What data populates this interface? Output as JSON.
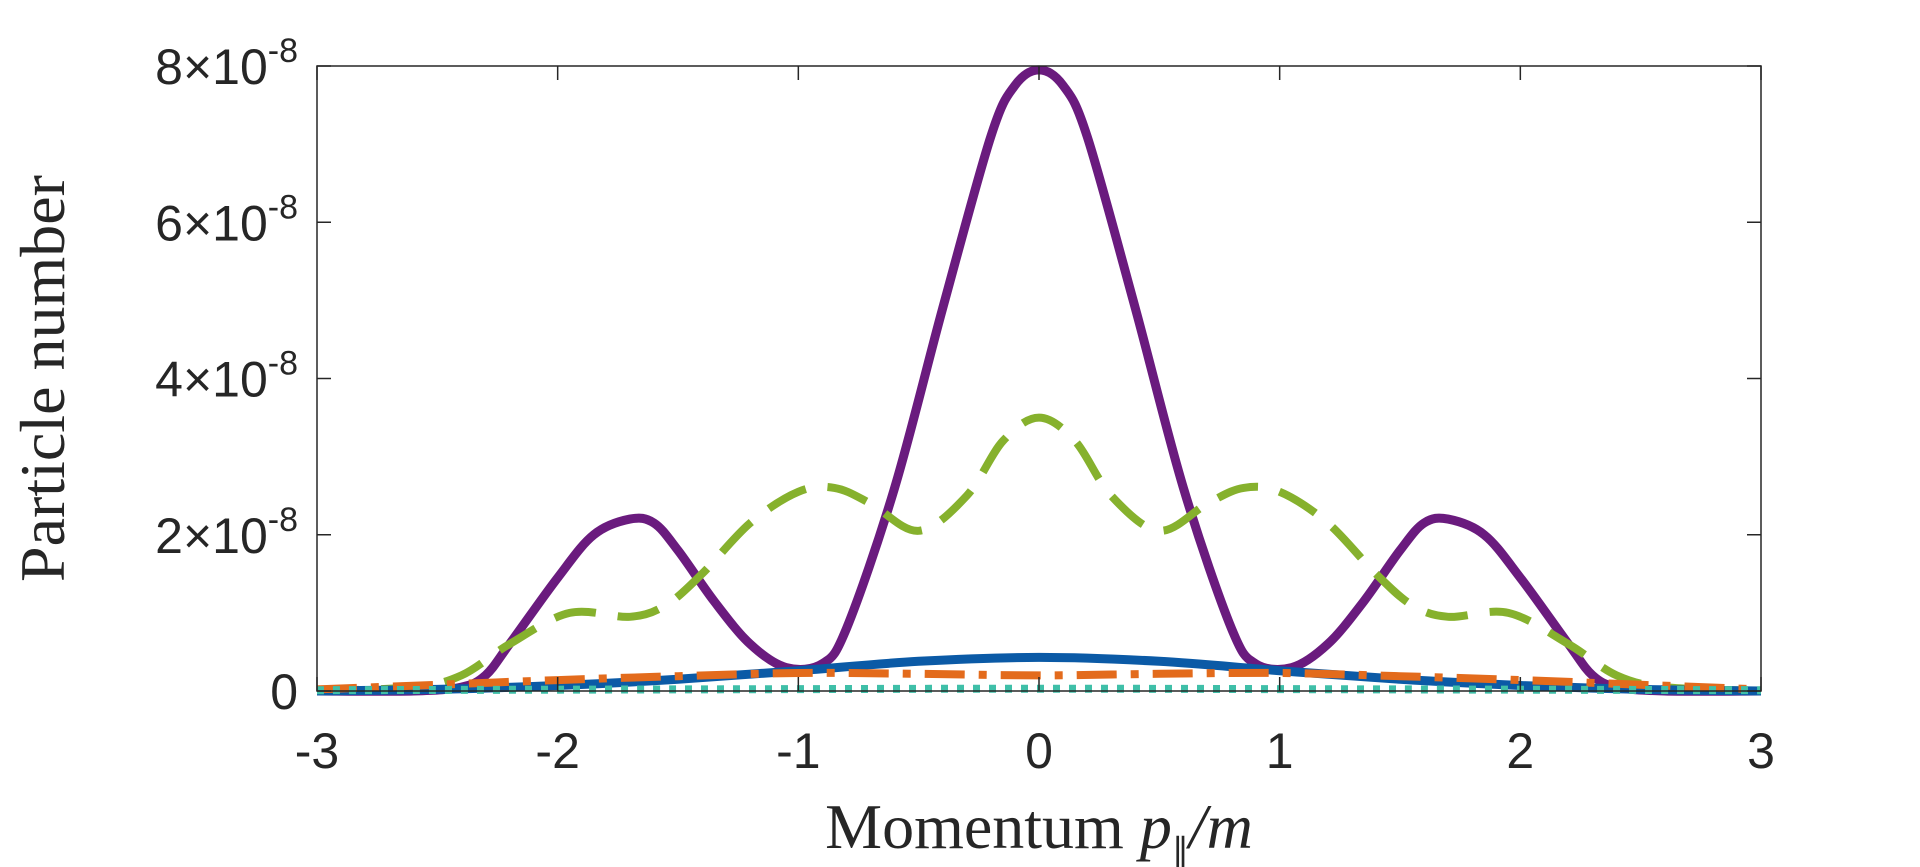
{
  "chart_data": {
    "type": "line",
    "title": "",
    "xlabel": {
      "prefix": "Momentum ",
      "var": "p",
      "sub": "∥",
      "suffix": "/m"
    },
    "ylabel": "Particle number",
    "xlim": [
      -3,
      3
    ],
    "ylim": [
      0,
      8e-08
    ],
    "x_ticks": [
      {
        "value": -3,
        "label": "-3"
      },
      {
        "value": -2,
        "label": "-2"
      },
      {
        "value": -1,
        "label": "-1"
      },
      {
        "value": 0,
        "label": "0"
      },
      {
        "value": 1,
        "label": "1"
      },
      {
        "value": 2,
        "label": "2"
      },
      {
        "value": 3,
        "label": "3"
      }
    ],
    "y_ticks": [
      {
        "value": 0,
        "label": "0"
      },
      {
        "value": 2e-08,
        "mant": "2",
        "times": "×",
        "base": "10",
        "exp": "-8"
      },
      {
        "value": 4e-08,
        "mant": "4",
        "times": "×",
        "base": "10",
        "exp": "-8"
      },
      {
        "value": 6e-08,
        "mant": "6",
        "times": "×",
        "base": "10",
        "exp": "-8"
      },
      {
        "value": 8e-08,
        "mant": "8",
        "times": "×",
        "base": "10",
        "exp": "-8"
      }
    ],
    "grid": false,
    "series": [
      {
        "name": "purple-solid",
        "color": "#6a1b7e",
        "style": "solid",
        "x": [
          -3,
          -2.6,
          -2.4,
          -2.3,
          -2.2,
          -2.0,
          -1.85,
          -1.7,
          -1.6,
          -1.5,
          -1.35,
          -1.2,
          -1.05,
          -0.9,
          -0.8,
          -0.6,
          -0.4,
          -0.2,
          -0.1,
          0,
          0.1,
          0.2,
          0.4,
          0.6,
          0.8,
          0.9,
          1.05,
          1.2,
          1.35,
          1.5,
          1.6,
          1.7,
          1.85,
          2.0,
          2.2,
          2.3,
          2.4,
          2.6,
          3
        ],
        "y": [
          0.0,
          0.0,
          5e-10,
          2e-09,
          6e-09,
          1.45e-08,
          2e-08,
          2.2e-08,
          2.15e-08,
          1.8e-08,
          1.15e-08,
          6e-09,
          3e-09,
          3.5e-09,
          8e-09,
          2.6e-08,
          4.9e-08,
          7.1e-08,
          7.75e-08,
          7.95e-08,
          7.75e-08,
          7.1e-08,
          4.9e-08,
          2.6e-08,
          8e-09,
          3.5e-09,
          3e-09,
          6e-09,
          1.15e-08,
          1.8e-08,
          2.15e-08,
          2.2e-08,
          2e-08,
          1.45e-08,
          6e-09,
          2e-09,
          5e-10,
          0.0,
          0.0
        ]
      },
      {
        "name": "green-dashed",
        "color": "#86b12d",
        "style": "dashed",
        "x": [
          -3,
          -2.6,
          -2.4,
          -2.2,
          -1.95,
          -1.7,
          -1.55,
          -1.4,
          -1.2,
          -1.0,
          -0.85,
          -0.7,
          -0.5,
          -0.3,
          -0.15,
          0,
          0.15,
          0.3,
          0.5,
          0.7,
          0.85,
          1.0,
          1.2,
          1.4,
          1.55,
          1.7,
          1.95,
          2.2,
          2.4,
          2.6,
          3
        ],
        "y": [
          0.0,
          5e-10,
          2e-09,
          6e-09,
          1e-08,
          9.5e-09,
          1.1e-08,
          1.5e-08,
          2.15e-08,
          2.55e-08,
          2.6e-08,
          2.4e-08,
          2.05e-08,
          2.5e-08,
          3.2e-08,
          3.5e-08,
          3.2e-08,
          2.5e-08,
          2.05e-08,
          2.4e-08,
          2.6e-08,
          2.55e-08,
          2.15e-08,
          1.5e-08,
          1.1e-08,
          9.5e-09,
          1e-08,
          6e-09,
          2e-09,
          5e-10,
          0.0
        ]
      },
      {
        "name": "blue-solid",
        "color": "#0b5aa6",
        "style": "solid",
        "x": [
          -3,
          -2.5,
          -2.0,
          -1.5,
          -1.0,
          -0.5,
          0,
          0.5,
          1.0,
          1.5,
          2.0,
          2.5,
          3
        ],
        "y": [
          0.0,
          2e-10,
          7e-10,
          1.5e-09,
          2.6e-09,
          3.8e-09,
          4.3e-09,
          3.8e-09,
          2.6e-09,
          1.5e-09,
          7e-10,
          2e-10,
          0.0
        ]
      },
      {
        "name": "orange-dashdot",
        "color": "#e36b1c",
        "style": "dashdot",
        "x": [
          -3,
          -2.5,
          -2.0,
          -1.5,
          -1.0,
          -0.5,
          0,
          0.5,
          1.0,
          1.5,
          2.0,
          2.5,
          3
        ],
        "y": [
          2e-10,
          8e-10,
          1.4e-09,
          1.9e-09,
          2.3e-09,
          2.2e-09,
          2e-09,
          2.2e-09,
          2.3e-09,
          1.9e-09,
          1.4e-09,
          8e-10,
          2e-10
        ]
      },
      {
        "name": "teal-dotted",
        "color": "#3fbfa8",
        "style": "dotted",
        "x": [
          -3,
          -1.5,
          0,
          1.5,
          3
        ],
        "y": [
          1e-10,
          2e-10,
          3e-10,
          2e-10,
          1e-10
        ]
      }
    ]
  }
}
